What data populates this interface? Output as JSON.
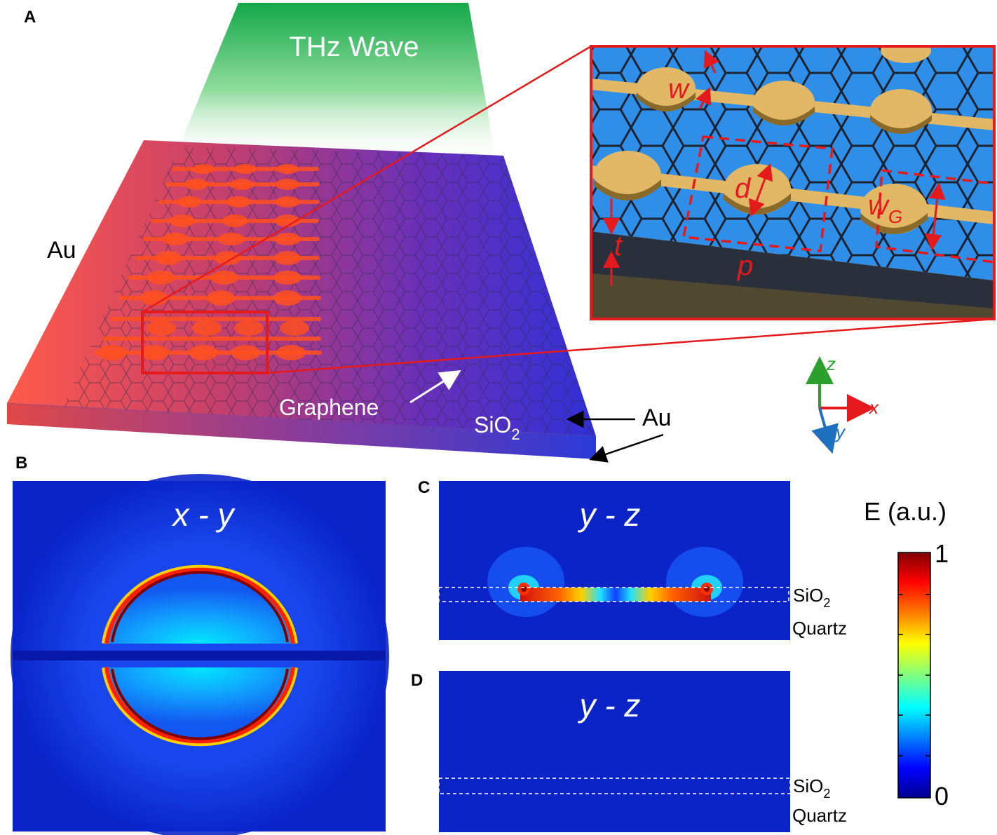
{
  "panels": {
    "a": {
      "letter": "A"
    },
    "b": {
      "letter": "B",
      "plane": "x - y"
    },
    "c": {
      "letter": "C",
      "plane": "y - z"
    },
    "d": {
      "letter": "D",
      "plane": "y - z"
    }
  },
  "schematic": {
    "wave_label": "THz Wave",
    "au_left": "Au",
    "au_right": "Au",
    "graphene": "Graphene",
    "substrate_main": "SiO",
    "substrate_sub": "2"
  },
  "inset": {
    "w": "w",
    "d": "d",
    "wg_main": "w",
    "wg_sub": "G",
    "t": "t",
    "p": "p"
  },
  "axes_triad": {
    "z": "z",
    "x": "x",
    "y": "y"
  },
  "layers": {
    "sio2_main": "SiO",
    "sio2_sub": "2",
    "quartz": "Quartz"
  },
  "colorbar": {
    "title": "E (a.u.)",
    "max": "1",
    "min": "0",
    "colormap": [
      "#00008f",
      "#0000ff",
      "#0080ff",
      "#00ffff",
      "#80ff80",
      "#ffff00",
      "#ff8000",
      "#ff0000",
      "#800000"
    ]
  },
  "colors": {
    "accent_red": "#e41a1c",
    "field_background": "#0a24c8",
    "axis_z": "#2ca02c",
    "axis_x": "#e41a1c",
    "axis_y": "#1f6fbf"
  }
}
